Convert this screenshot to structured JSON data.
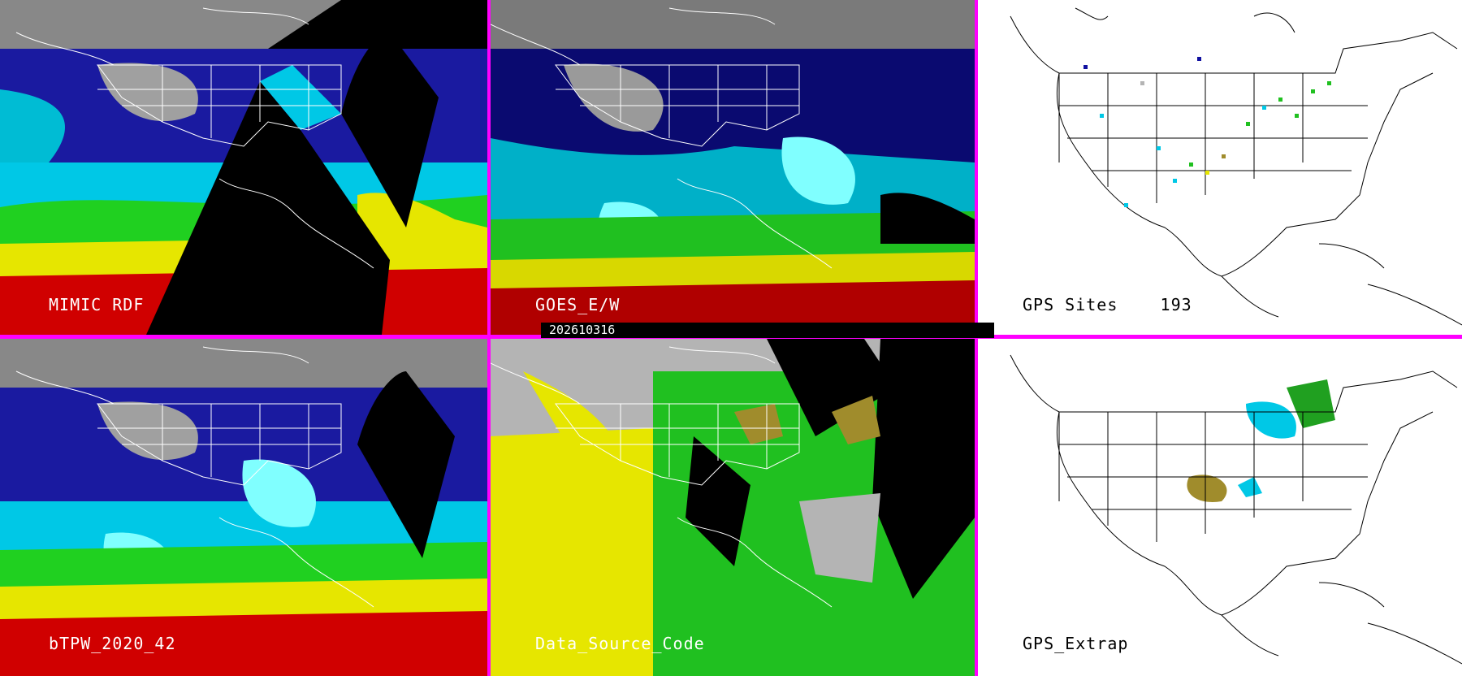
{
  "panels": [
    {
      "id": "mimic_rdf",
      "label": "MIMIC RDF",
      "theme": "dark"
    },
    {
      "id": "goes_ew",
      "label": "GOES_E/W",
      "theme": "dark"
    },
    {
      "id": "gps_sites",
      "label": "GPS Sites    193",
      "theme": "light"
    },
    {
      "id": "btpw",
      "label": "bTPW_2020_42",
      "theme": "dark"
    },
    {
      "id": "data_source",
      "label": "Data_Source_Code",
      "theme": "dark"
    },
    {
      "id": "gps_extrap",
      "label": "GPS_Extrap",
      "theme": "light"
    }
  ],
  "date_stamp": "202610316",
  "colors": {
    "separator": "#ff00ff",
    "tpw_scale": [
      "#808080",
      "#b4b4b4",
      "#00008c",
      "#1010c8",
      "#00c8e6",
      "#00ffff",
      "#00c800",
      "#32e632",
      "#b4a000",
      "#e6e600",
      "#ffff00",
      "#ff0000",
      "#c80000"
    ],
    "source_codes": [
      "#b4b4b4",
      "#e6e600",
      "#00c800",
      "#a08c2c",
      "#000000"
    ]
  }
}
